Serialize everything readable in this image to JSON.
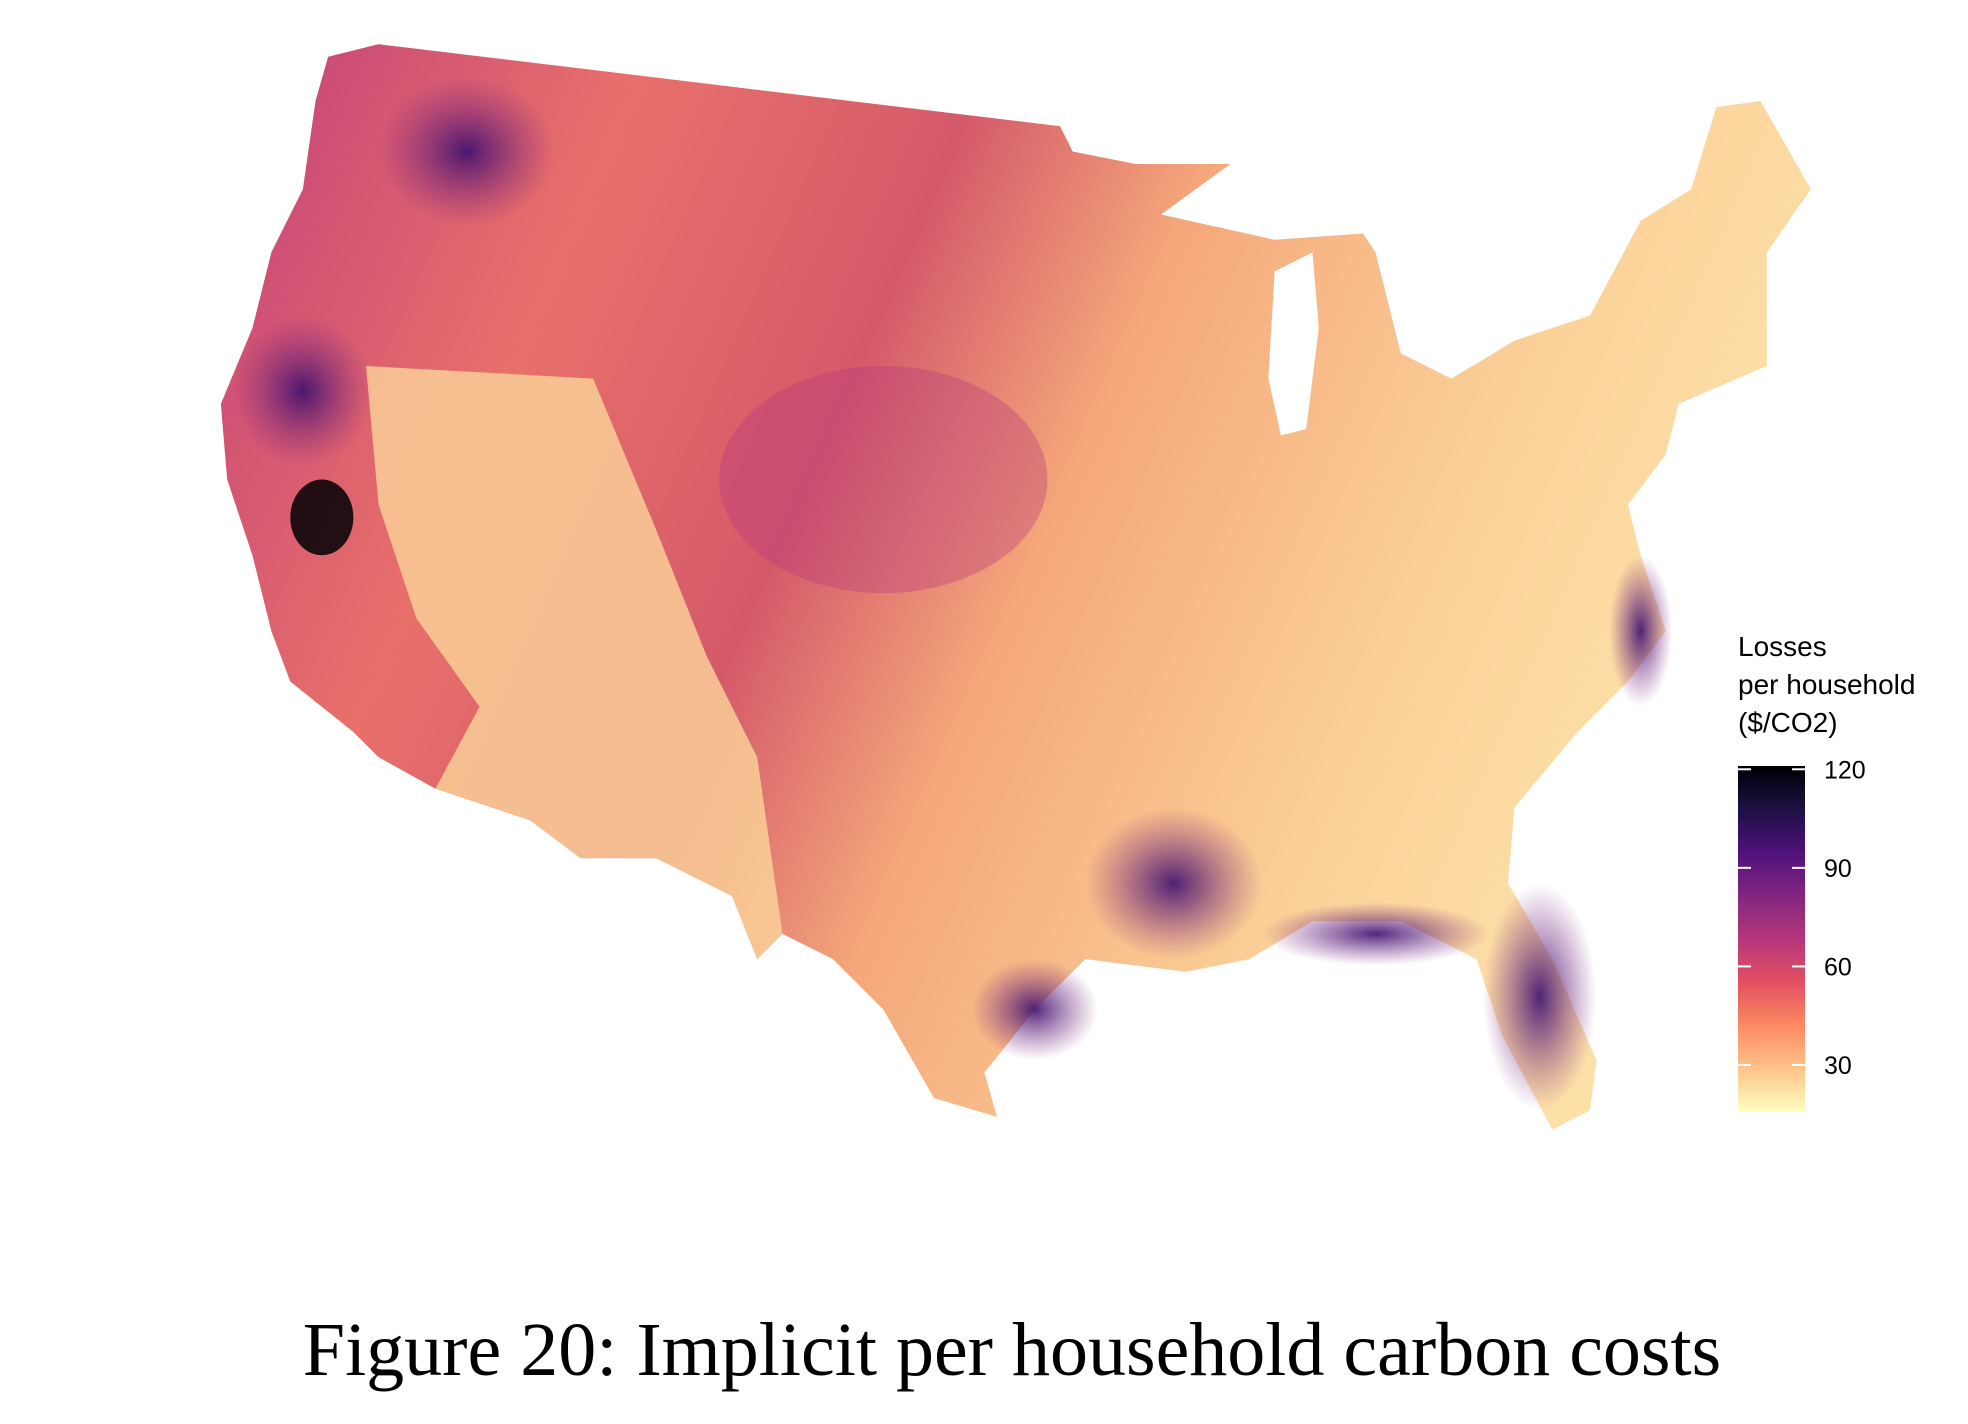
{
  "figure": {
    "caption": "Figure 20: Implicit per household carbon costs"
  },
  "legend": {
    "title": [
      "Losses",
      "per household",
      "($/CO2)"
    ],
    "range": [
      16,
      121
    ],
    "ticks": [
      30,
      60,
      90,
      120
    ],
    "colors": [
      "#fcfdbf",
      "#fec287",
      "#fc8961",
      "#e24f62",
      "#b5367a",
      "#822681",
      "#4f127b",
      "#1c1044",
      "#000004"
    ]
  }
}
